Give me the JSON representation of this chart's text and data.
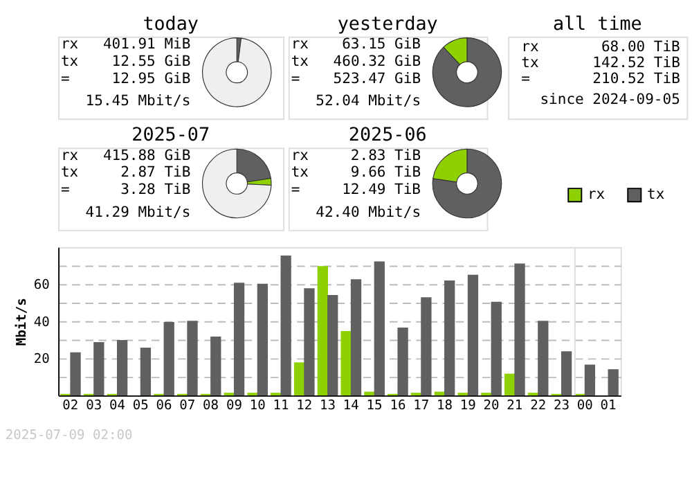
{
  "chart_data": [
    {
      "type": "donut",
      "title": "today",
      "categories": [
        null,
        null
      ],
      "values": [
        2.0,
        98.0
      ],
      "colors": [
        "#606060",
        "#efefef"
      ],
      "annotations": [
        "rx",
        "401.91 MiB",
        "tx",
        "12.55 GiB",
        "=",
        "12.95 GiB",
        "15.45 Mbit/s"
      ]
    },
    {
      "type": "donut",
      "title": "yesterday",
      "categories": [
        null,
        null
      ],
      "values": [
        88,
        12
      ],
      "colors": [
        "#606060",
        "#8fd000"
      ],
      "annotations": [
        "rx",
        "63.15 GiB",
        "tx",
        "460.32 GiB",
        "=",
        "523.47 GiB",
        "52.04 Mbit/s"
      ]
    },
    {
      "type": "other",
      "title": "all time",
      "annotations": [
        "rx",
        "68.00 TiB",
        "tx",
        "142.52 TiB",
        "=",
        "210.52 TiB",
        "since 2024-09-05"
      ]
    },
    {
      "type": "donut",
      "title": "2025-07",
      "categories": [
        null,
        null,
        null
      ],
      "values": [
        22.6,
        3.2,
        74.2
      ],
      "colors": [
        "#606060",
        "#8fd000",
        "#efefef"
      ],
      "annotations": [
        "rx",
        "415.88 GiB",
        "tx",
        "2.87 TiB",
        "=",
        "3.28 TiB",
        "41.29 Mbit/s"
      ]
    },
    {
      "type": "donut",
      "title": "2025-06",
      "categories": [
        null,
        null
      ],
      "values": [
        77.3,
        22.7
      ],
      "colors": [
        "#606060",
        "#8fd000"
      ],
      "annotations": [
        "rx",
        "2.83 TiB",
        "tx",
        "9.66 TiB",
        "=",
        "12.49 TiB",
        "42.40 Mbit/s"
      ]
    },
    {
      "type": "bar",
      "ylabel": "Mbit/s",
      "categories": [
        "02",
        "03",
        "04",
        "05",
        "06",
        "07",
        "08",
        "09",
        "10",
        "11",
        "12",
        "13",
        "14",
        "15",
        "16",
        "17",
        "18",
        "19",
        "20",
        "21",
        "22",
        "23",
        "00",
        "01"
      ],
      "series": [
        {
          "name": "rx",
          "color": "#8fd000",
          "values": [
            0.8,
            0.8,
            0.8,
            0,
            0.8,
            0.8,
            0.8,
            1.4,
            1.4,
            1.4,
            17.8,
            69.7,
            34.7,
            2.0,
            0.8,
            1.4,
            2.0,
            1.4,
            1.4,
            11.7,
            1.4,
            0.8,
            0.8,
            0
          ]
        },
        {
          "name": "tx",
          "color": "#606060",
          "values": [
            23.2,
            28.7,
            29.9,
            25.7,
            39.6,
            40.2,
            31.7,
            60.8,
            60.2,
            75.4,
            57.8,
            54.1,
            62.6,
            72.3,
            36.6,
            52.9,
            62.0,
            65.1,
            50.5,
            71.1,
            40.2,
            23.8,
            16.6,
            14.1
          ]
        }
      ],
      "ylim": [
        0,
        80
      ],
      "yticks": [
        {
          "value": 0,
          "label": null
        },
        {
          "value": 10,
          "label": null
        },
        20,
        {
          "value": 30,
          "label": null
        },
        40,
        {
          "value": 50,
          "label": null
        },
        60,
        {
          "value": 70,
          "label": null
        }
      ],
      "grid": "y",
      "legend": "top right",
      "ref_lines": [
        {
          "axis": "x",
          "value": "00",
          "color": "#dddddd"
        }
      ],
      "annotations": [
        "2025-07-09 02:00"
      ]
    }
  ]
}
